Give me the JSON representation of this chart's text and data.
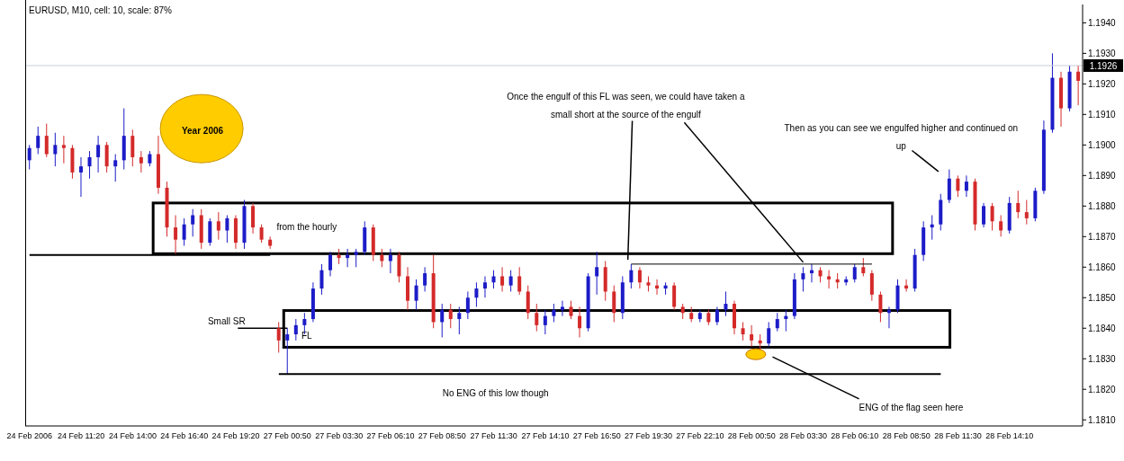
{
  "chart_data": {
    "type": "candlestick",
    "title": "EURUSD, M10, cell: 10, scale: 87%",
    "categories": [
      "24 Feb 2006",
      null,
      null,
      null,
      null,
      null,
      "24 Feb 11:20",
      null,
      null,
      null,
      null,
      null,
      "24 Feb 14:00",
      null,
      null,
      null,
      null,
      null,
      "24 Feb 16:40",
      null,
      null,
      null,
      null,
      null,
      "24 Feb 19:20",
      null,
      null,
      null,
      null,
      null,
      "27 Feb 00:50",
      null,
      null,
      null,
      null,
      null,
      "27 Feb 03:30",
      null,
      null,
      null,
      null,
      null,
      "27 Feb 06:10",
      null,
      null,
      null,
      null,
      null,
      "27 Feb 08:50",
      null,
      null,
      null,
      null,
      null,
      "27 Feb 11:30",
      null,
      null,
      null,
      null,
      null,
      "27 Feb 14:10",
      null,
      null,
      null,
      null,
      null,
      "27 Feb 16:50",
      null,
      null,
      null,
      null,
      null,
      "27 Feb 19:30",
      null,
      null,
      null,
      null,
      null,
      "27 Feb 22:10",
      null,
      null,
      null,
      null,
      null,
      "28 Feb 00:50",
      null,
      null,
      null,
      null,
      null,
      "28 Feb 03:30",
      null,
      null,
      null,
      null,
      null,
      "28 Feb 06:10",
      null,
      null,
      null,
      null,
      null,
      "28 Feb 08:50",
      null,
      null,
      null,
      null,
      null,
      "28 Feb 11:30",
      null,
      null,
      null,
      null,
      null,
      "28 Feb 14:10",
      null,
      null,
      null,
      null,
      null,
      null,
      null,
      null
    ],
    "ohlc": [
      [
        1.1895,
        1.19,
        1.1892,
        1.1899
      ],
      [
        1.1899,
        1.1906,
        1.1897,
        1.1903
      ],
      [
        1.1903,
        1.1907,
        1.1896,
        1.1897
      ],
      [
        1.1897,
        1.1904,
        1.1893,
        1.19
      ],
      [
        1.19,
        1.1903,
        1.1894,
        1.1899
      ],
      [
        1.1899,
        1.19,
        1.1889,
        1.1891
      ],
      [
        1.1891,
        1.1896,
        1.1883,
        1.1893
      ],
      [
        1.1893,
        1.1898,
        1.1889,
        1.1896
      ],
      [
        1.1896,
        1.1903,
        1.1891,
        1.19
      ],
      [
        1.19,
        1.1901,
        1.1891,
        1.1893
      ],
      [
        1.1893,
        1.1897,
        1.1888,
        1.1895
      ],
      [
        1.1895,
        1.1912,
        1.1892,
        1.1903
      ],
      [
        1.1903,
        1.1905,
        1.1893,
        1.1896
      ],
      [
        1.1896,
        1.1898,
        1.1891,
        1.1894
      ],
      [
        1.1894,
        1.1898,
        1.1893,
        1.1897
      ],
      [
        1.1897,
        1.1903,
        1.1884,
        1.1886
      ],
      [
        1.1886,
        1.1888,
        1.187,
        1.1873
      ],
      [
        1.1873,
        1.1877,
        1.1864,
        1.1869
      ],
      [
        1.1869,
        1.1876,
        1.1867,
        1.1874
      ],
      [
        1.1874,
        1.1879,
        1.187,
        1.1877
      ],
      [
        1.1877,
        1.1879,
        1.1866,
        1.1868
      ],
      [
        1.1868,
        1.1876,
        1.1867,
        1.1875
      ],
      [
        1.1875,
        1.1878,
        1.1869,
        1.1872
      ],
      [
        1.1872,
        1.1877,
        1.1868,
        1.1876
      ],
      [
        1.1876,
        1.1877,
        1.1866,
        1.1868
      ],
      [
        1.1868,
        1.1882,
        1.1866,
        1.188
      ],
      [
        1.188,
        1.1881,
        1.1871,
        1.1873
      ],
      [
        1.1873,
        1.1874,
        1.1868,
        1.1869
      ],
      [
        1.1869,
        1.187,
        1.1866,
        1.1867
      ],
      [
        1.184,
        1.1842,
        1.1832,
        1.1836
      ],
      [
        1.1836,
        1.184,
        1.1825,
        1.1838
      ],
      [
        1.1838,
        1.1843,
        1.1836,
        1.1841
      ],
      [
        1.1841,
        1.1845,
        1.1838,
        1.1843
      ],
      [
        1.1843,
        1.1855,
        1.1842,
        1.1853
      ],
      [
        1.1853,
        1.1861,
        1.1851,
        1.1859
      ],
      [
        1.1859,
        1.1865,
        1.1857,
        1.1864
      ],
      [
        1.1864,
        1.1866,
        1.1861,
        1.1863
      ],
      [
        1.1863,
        1.1866,
        1.186,
        1.1864
      ],
      [
        1.1864,
        1.1866,
        1.186,
        1.1865
      ],
      [
        1.1865,
        1.1875,
        1.1864,
        1.1873
      ],
      [
        1.1873,
        1.1874,
        1.1862,
        1.1864
      ],
      [
        1.1864,
        1.1866,
        1.186,
        1.1862
      ],
      [
        1.1862,
        1.1866,
        1.1858,
        1.1864
      ],
      [
        1.1864,
        1.1865,
        1.1855,
        1.1857
      ],
      [
        1.1857,
        1.186,
        1.1846,
        1.1849
      ],
      [
        1.1849,
        1.1856,
        1.1846,
        1.1854
      ],
      [
        1.1854,
        1.186,
        1.1852,
        1.1858
      ],
      [
        1.1858,
        1.1864,
        1.184,
        1.1842
      ],
      [
        1.1842,
        1.1848,
        1.1837,
        1.1846
      ],
      [
        1.1846,
        1.1848,
        1.184,
        1.1843
      ],
      [
        1.1843,
        1.1847,
        1.1838,
        1.1845
      ],
      [
        1.1845,
        1.1852,
        1.1843,
        1.185
      ],
      [
        1.185,
        1.1855,
        1.1847,
        1.1853
      ],
      [
        1.1853,
        1.1857,
        1.185,
        1.1855
      ],
      [
        1.1855,
        1.1859,
        1.1853,
        1.1857
      ],
      [
        1.1857,
        1.186,
        1.1852,
        1.1854
      ],
      [
        1.1854,
        1.1859,
        1.1852,
        1.1857
      ],
      [
        1.1857,
        1.186,
        1.1851,
        1.1852
      ],
      [
        1.1852,
        1.1854,
        1.1843,
        1.1845
      ],
      [
        1.1845,
        1.1848,
        1.1839,
        1.1841
      ],
      [
        1.1841,
        1.1846,
        1.1838,
        1.1844
      ],
      [
        1.1844,
        1.1848,
        1.1842,
        1.1846
      ],
      [
        1.1846,
        1.1849,
        1.1844,
        1.1847
      ],
      [
        1.1847,
        1.1849,
        1.1843,
        1.1844
      ],
      [
        1.1844,
        1.1847,
        1.1837,
        1.184
      ],
      [
        1.184,
        1.1858,
        1.1839,
        1.1857
      ],
      [
        1.1857,
        1.1865,
        1.1851,
        1.186
      ],
      [
        1.186,
        1.1862,
        1.1849,
        1.1852
      ],
      [
        1.1852,
        1.1854,
        1.1842,
        1.1845
      ],
      [
        1.1845,
        1.1857,
        1.1843,
        1.1855
      ],
      [
        1.1855,
        1.1861,
        1.1853,
        1.1859
      ],
      [
        1.1859,
        1.186,
        1.1853,
        1.1855
      ],
      [
        1.1855,
        1.1857,
        1.1852,
        1.1854
      ],
      [
        1.1854,
        1.1856,
        1.1851,
        1.1853
      ],
      [
        1.1853,
        1.1855,
        1.1851,
        1.1854
      ],
      [
        1.1854,
        1.1855,
        1.1846,
        1.1847
      ],
      [
        1.1847,
        1.1848,
        1.1843,
        1.1845
      ],
      [
        1.1845,
        1.1847,
        1.1842,
        1.1843
      ],
      [
        1.1843,
        1.1846,
        1.1842,
        1.1845
      ],
      [
        1.1845,
        1.1846,
        1.1841,
        1.1842
      ],
      [
        1.1842,
        1.1847,
        1.1841,
        1.1846
      ],
      [
        1.1846,
        1.1852,
        1.1844,
        1.1848
      ],
      [
        1.1848,
        1.1849,
        1.1838,
        1.184
      ],
      [
        1.184,
        1.1842,
        1.1836,
        1.1838
      ],
      [
        1.1838,
        1.1841,
        1.1834,
        1.1836
      ],
      [
        1.1836,
        1.1838,
        1.1833,
        1.1835
      ],
      [
        1.1835,
        1.1842,
        1.1834,
        1.184
      ],
      [
        1.184,
        1.1845,
        1.1839,
        1.1843
      ],
      [
        1.1843,
        1.1846,
        1.1839,
        1.1844
      ],
      [
        1.1844,
        1.1858,
        1.1843,
        1.1856
      ],
      [
        1.1856,
        1.186,
        1.1852,
        1.1858
      ],
      [
        1.1858,
        1.1861,
        1.1855,
        1.1859
      ],
      [
        1.1859,
        1.186,
        1.1855,
        1.1857
      ],
      [
        1.1857,
        1.1859,
        1.1853,
        1.1856
      ],
      [
        1.1856,
        1.1858,
        1.1853,
        1.1855
      ],
      [
        1.1855,
        1.1857,
        1.1854,
        1.1856
      ],
      [
        1.1856,
        1.1861,
        1.1855,
        1.186
      ],
      [
        1.186,
        1.1863,
        1.1857,
        1.1858
      ],
      [
        1.1858,
        1.1859,
        1.1849,
        1.1851
      ],
      [
        1.1851,
        1.1852,
        1.1842,
        1.1845
      ],
      [
        1.1845,
        1.1847,
        1.184,
        1.1846
      ],
      [
        1.1846,
        1.1856,
        1.1845,
        1.1854
      ],
      [
        1.1854,
        1.1856,
        1.1852,
        1.1853
      ],
      [
        1.1853,
        1.1866,
        1.1852,
        1.1864
      ],
      [
        1.1864,
        1.1875,
        1.1862,
        1.1873
      ],
      [
        1.1873,
        1.1877,
        1.1869,
        1.1874
      ],
      [
        1.1874,
        1.1884,
        1.1872,
        1.1882
      ],
      [
        1.1882,
        1.1892,
        1.1881,
        1.1889
      ],
      [
        1.1889,
        1.189,
        1.1883,
        1.1885
      ],
      [
        1.1885,
        1.189,
        1.1883,
        1.1888
      ],
      [
        1.1888,
        1.1889,
        1.1872,
        1.1874
      ],
      [
        1.1874,
        1.1881,
        1.1873,
        1.188
      ],
      [
        1.188,
        1.1881,
        1.1872,
        1.1875
      ],
      [
        1.1875,
        1.1877,
        1.187,
        1.1872
      ],
      [
        1.1872,
        1.1883,
        1.1871,
        1.1881
      ],
      [
        1.1881,
        1.1885,
        1.1876,
        1.1878
      ],
      [
        1.1878,
        1.1882,
        1.1874,
        1.1876
      ],
      [
        1.1876,
        1.1886,
        1.1875,
        1.1885
      ],
      [
        1.1885,
        1.1908,
        1.1884,
        1.1905
      ],
      [
        1.1905,
        1.193,
        1.1904,
        1.1922
      ],
      [
        1.1922,
        1.1924,
        1.1906,
        1.1912
      ],
      [
        1.1912,
        1.1926,
        1.1911,
        1.1924
      ],
      [
        1.1924,
        1.1926,
        1.1913,
        1.1921
      ]
    ],
    "colors": [
      "#1c1cc8",
      "#1c1cc8",
      "#d42a2a",
      "#1c1cc8",
      "#d42a2a",
      "#d42a2a",
      "#1c1cc8",
      "#1c1cc8",
      "#1c1cc8",
      "#d42a2a",
      "#1c1cc8",
      "#1c1cc8",
      "#d42a2a",
      "#d42a2a",
      "#1c1cc8",
      "#d42a2a",
      "#d42a2a",
      "#d42a2a",
      "#1c1cc8",
      "#1c1cc8",
      "#d42a2a",
      "#1c1cc8",
      "#d42a2a",
      "#1c1cc8",
      "#d42a2a",
      "#1c1cc8",
      "#d42a2a",
      "#d42a2a",
      "#d42a2a",
      "#d42a2a",
      "#1c1cc8",
      "#1c1cc8",
      "#1c1cc8",
      "#1c1cc8",
      "#1c1cc8",
      "#1c1cc8",
      "#d42a2a",
      "#1c1cc8",
      "#1c1cc8",
      "#1c1cc8",
      "#d42a2a",
      "#d42a2a",
      "#1c1cc8",
      "#d42a2a",
      "#d42a2a",
      "#1c1cc8",
      "#1c1cc8",
      "#d42a2a",
      "#1c1cc8",
      "#d42a2a",
      "#1c1cc8",
      "#1c1cc8",
      "#1c1cc8",
      "#1c1cc8",
      "#1c1cc8",
      "#d42a2a",
      "#1c1cc8",
      "#d42a2a",
      "#d42a2a",
      "#d42a2a",
      "#1c1cc8",
      "#1c1cc8",
      "#1c1cc8",
      "#d42a2a",
      "#d42a2a",
      "#1c1cc8",
      "#1c1cc8",
      "#d42a2a",
      "#d42a2a",
      "#1c1cc8",
      "#1c1cc8",
      "#d42a2a",
      "#d42a2a",
      "#d42a2a",
      "#1c1cc8",
      "#d42a2a",
      "#d42a2a",
      "#d42a2a",
      "#1c1cc8",
      "#d42a2a",
      "#1c1cc8",
      "#1c1cc8",
      "#d42a2a",
      "#d42a2a",
      "#d42a2a",
      "#d42a2a",
      "#1c1cc8",
      "#1c1cc8",
      "#1c1cc8",
      "#1c1cc8",
      "#1c1cc8",
      "#1c1cc8",
      "#d42a2a",
      "#d42a2a",
      "#d42a2a",
      "#1c1cc8",
      "#1c1cc8",
      "#d42a2a",
      "#d42a2a",
      "#d42a2a",
      "#1c1cc8",
      "#1c1cc8",
      "#d42a2a",
      "#1c1cc8",
      "#1c1cc8",
      "#1c1cc8",
      "#1c1cc8",
      "#1c1cc8",
      "#d42a2a",
      "#1c1cc8",
      "#d42a2a",
      "#1c1cc8",
      "#d42a2a",
      "#d42a2a",
      "#1c1cc8",
      "#d42a2a",
      "#d42a2a",
      "#1c1cc8",
      "#1c1cc8",
      "#1c1cc8",
      "#d42a2a",
      "#1c1cc8",
      "#d42a2a"
    ],
    "ylim": [
      1.1808,
      1.1946
    ],
    "yticks": [
      {
        "value": 1.181,
        "label": "1.1810"
      },
      {
        "value": 1.182,
        "label": "1.1820"
      },
      {
        "value": 1.183,
        "label": "1.1830"
      },
      {
        "value": 1.184,
        "label": "1.1840"
      },
      {
        "value": 1.185,
        "label": "1.1850"
      },
      {
        "value": 1.186,
        "label": "1.1860"
      },
      {
        "value": 1.187,
        "label": "1.1870"
      },
      {
        "value": 1.188,
        "label": "1.1880"
      },
      {
        "value": 1.189,
        "label": "1.1890"
      },
      {
        "value": 1.19,
        "label": "1.1900"
      },
      {
        "value": 1.191,
        "label": "1.1910"
      },
      {
        "value": 1.192,
        "label": "1.1920"
      },
      {
        "value": 1.193,
        "label": "1.1930"
      },
      {
        "value": 1.194,
        "label": "1.1940"
      }
    ],
    "ref_lines": [
      {
        "axis": "y",
        "value": 1.1926,
        "label": "1.1926",
        "color": "#c8d0d8"
      },
      {
        "axis": "y",
        "value": 1.1864,
        "color": "#000000"
      },
      {
        "axis": "y",
        "value": 1.1825,
        "color": "#000000"
      },
      {
        "axis": "y",
        "value": 1.1861,
        "color": "#000000"
      }
    ],
    "grid": false,
    "legend": false,
    "annotations": [
      "Year 2006",
      "from the hourly",
      {
        "text": "Small SR",
        "x": "27 Feb 00:50",
        "y": 1.184
      },
      "FL",
      "No ENG of this low though",
      {
        "text": "Once the engulf of this FL was seen, we could have taken a small short at the source of the engulf",
        "x": "28 Feb 03:30",
        "y": 1.1861
      },
      "Then as you can see we engulfed higher and continued on up",
      "ENG of the flag seen here"
    ]
  }
}
